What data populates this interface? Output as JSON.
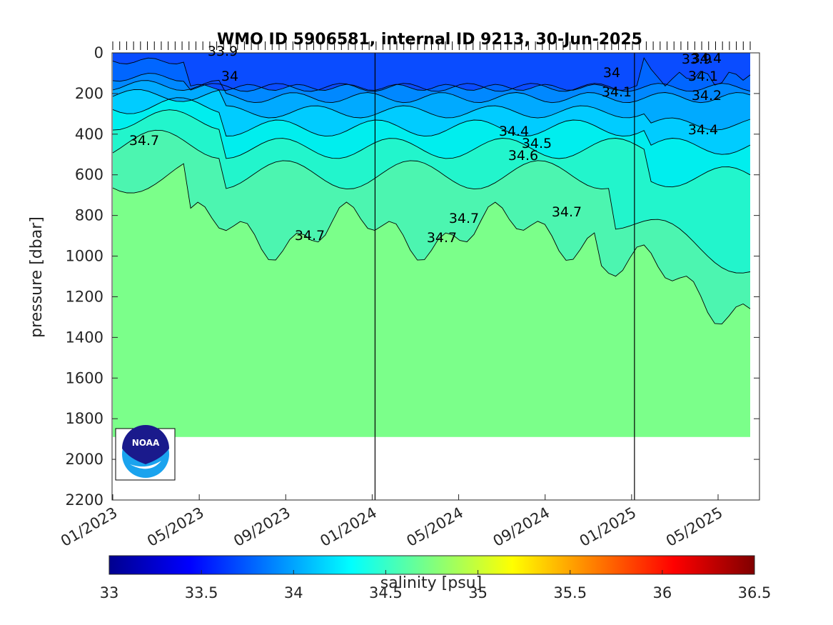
{
  "chart_data": {
    "type": "heatmap",
    "title": "WMO ID 5906581, internal ID 9213, 30-Jun-2025",
    "ylabel": "pressure [dbar]",
    "colorbar_label": "salinity [psu]",
    "y_reversed": true,
    "ylim": [
      0,
      2200
    ],
    "y_ticks": [
      "0",
      "200",
      "400",
      "600",
      "800",
      "1000",
      "1200",
      "1400",
      "1600",
      "1800",
      "2000",
      "2200"
    ],
    "x_ticks": [
      "01/2023",
      "05/2023",
      "09/2023",
      "01/2024",
      "05/2024",
      "09/2024",
      "01/2025",
      "05/2025"
    ],
    "year_dividers": [
      "01/2024",
      "01/2025"
    ],
    "profile_coverage": {
      "start": "01/2023",
      "end": "06/2025",
      "max_pressure_dbar": 1890
    },
    "colorbar_ticks": [
      "33",
      "33.5",
      "34",
      "34.5",
      "35",
      "35.5",
      "36",
      "36.5"
    ],
    "colorbar_range": [
      33,
      36.5
    ],
    "colormap": "jet",
    "contour_levels": [
      33.9,
      34.0,
      34.1,
      34.2,
      34.3,
      34.4,
      34.5,
      34.6,
      34.7
    ],
    "contour_labels": [
      {
        "text": "33.9"
      },
      {
        "text": "34"
      },
      {
        "text": "34.7"
      },
      {
        "text": "34.7"
      },
      {
        "text": "34.7"
      },
      {
        "text": "34.7"
      },
      {
        "text": "34.7"
      },
      {
        "text": "34.4"
      },
      {
        "text": "34.5"
      },
      {
        "text": "34.6"
      },
      {
        "text": "34"
      },
      {
        "text": "34.1"
      },
      {
        "text": "33.9"
      },
      {
        "text": "34.1"
      },
      {
        "text": "34.2"
      },
      {
        "text": "34.4"
      },
      {
        "text": "34.4"
      }
    ],
    "layer_colors": [
      "#0a4cff",
      "#0066ff",
      "#0088ff",
      "#00aaff",
      "#00ccff",
      "#00eeee",
      "#22f5cc",
      "#4cf5b0",
      "#7bff8a"
    ],
    "logo_text": "NOAA"
  }
}
